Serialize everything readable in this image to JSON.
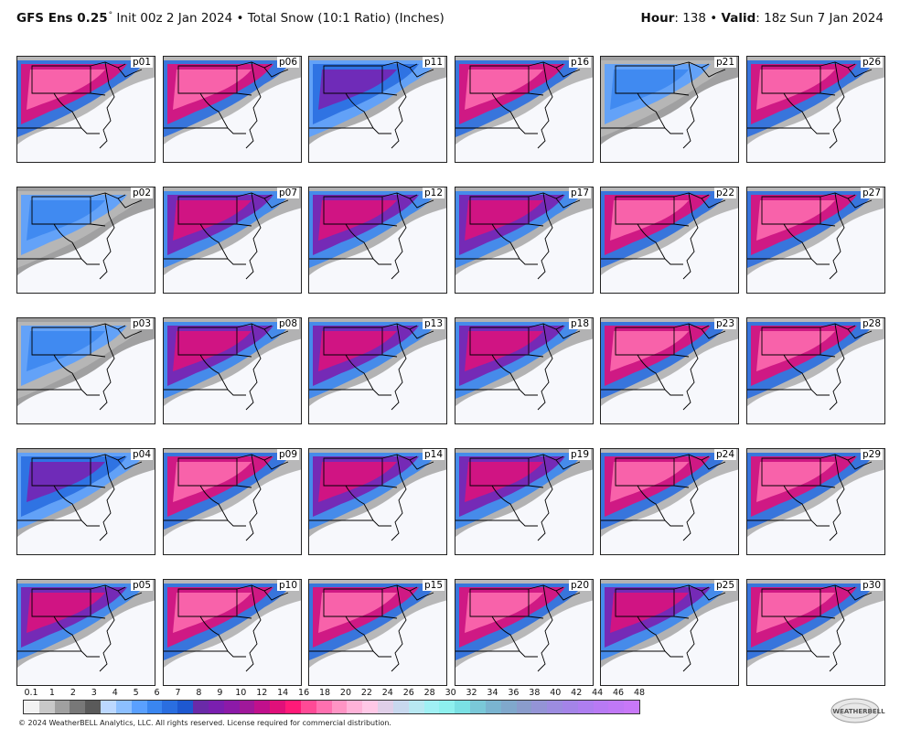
{
  "header": {
    "model": "GFS Ens 0.25",
    "deg": "°",
    "init": "Init 00z 2 Jan 2024",
    "bullet": "•",
    "product": "Total Snow (10:1 Ratio) (Inches)",
    "hour_label": "Hour",
    "hour_value": ": 138",
    "valid_label": "Valid",
    "valid_value": ": 18z Sun 7 Jan 2024"
  },
  "panels": [
    {
      "label": "p01",
      "snow": "heavy"
    },
    {
      "label": "p06",
      "snow": "heavy"
    },
    {
      "label": "p11",
      "snow": "light"
    },
    {
      "label": "p16",
      "snow": "heavy"
    },
    {
      "label": "p21",
      "snow": "trace"
    },
    {
      "label": "p26",
      "snow": "heavy"
    },
    {
      "label": "p02",
      "snow": "trace"
    },
    {
      "label": "p07",
      "snow": "moderate"
    },
    {
      "label": "p12",
      "snow": "moderate"
    },
    {
      "label": "p17",
      "snow": "moderate"
    },
    {
      "label": "p22",
      "snow": "heavy"
    },
    {
      "label": "p27",
      "snow": "heavy"
    },
    {
      "label": "p03",
      "snow": "trace"
    },
    {
      "label": "p08",
      "snow": "moderate"
    },
    {
      "label": "p13",
      "snow": "moderate"
    },
    {
      "label": "p18",
      "snow": "moderate"
    },
    {
      "label": "p23",
      "snow": "heavy"
    },
    {
      "label": "p28",
      "snow": "heavy"
    },
    {
      "label": "p04",
      "snow": "light"
    },
    {
      "label": "p09",
      "snow": "heavy"
    },
    {
      "label": "p14",
      "snow": "moderate"
    },
    {
      "label": "p19",
      "snow": "moderate"
    },
    {
      "label": "p24",
      "snow": "heavy"
    },
    {
      "label": "p29",
      "snow": "heavy"
    },
    {
      "label": "p05",
      "snow": "moderate"
    },
    {
      "label": "p10",
      "snow": "heavy"
    },
    {
      "label": "p15",
      "snow": "heavy"
    },
    {
      "label": "p20",
      "snow": "heavy"
    },
    {
      "label": "p25",
      "snow": "moderate"
    },
    {
      "label": "p30",
      "snow": "heavy"
    }
  ],
  "colorbar": {
    "labels": [
      "0.1",
      "1",
      "2",
      "3",
      "4",
      "5",
      "6",
      "7",
      "8",
      "9",
      "10",
      "12",
      "14",
      "16",
      "18",
      "20",
      "22",
      "24",
      "26",
      "28",
      "30",
      "32",
      "34",
      "36",
      "38",
      "40",
      "42",
      "44",
      "46",
      "48"
    ],
    "colors": [
      "#f2f2f2",
      "#c8c8c8",
      "#a0a0a0",
      "#787878",
      "#5a5a5a",
      "#bcd8ff",
      "#8cbfff",
      "#5aa0ff",
      "#3a86f0",
      "#2a6ee0",
      "#1e58d0",
      "#6a2aa8",
      "#7a1fb0",
      "#8c1aa8",
      "#a0189a",
      "#c0108c",
      "#e0107a",
      "#ff1a78",
      "#ff4a96",
      "#ff70b0",
      "#ff94c4",
      "#ffb2d8",
      "#ffc8e6",
      "#e0cfe8",
      "#c8d8ee",
      "#b8e8f2",
      "#a0f0f4",
      "#8ef0ee",
      "#7ae0e4",
      "#7ac8d8",
      "#7ab4d0",
      "#80a8cc",
      "#8a9ccc",
      "#9494d6",
      "#9c8ce0",
      "#a484e8",
      "#ae7ef0",
      "#b87af4",
      "#c078f6",
      "#c878f8"
    ]
  },
  "footer": "© 2024 WeatherBELL Analytics, LLC. All rights reserved. License required for commercial distribution.",
  "logo_text": "WEATHERBELL"
}
